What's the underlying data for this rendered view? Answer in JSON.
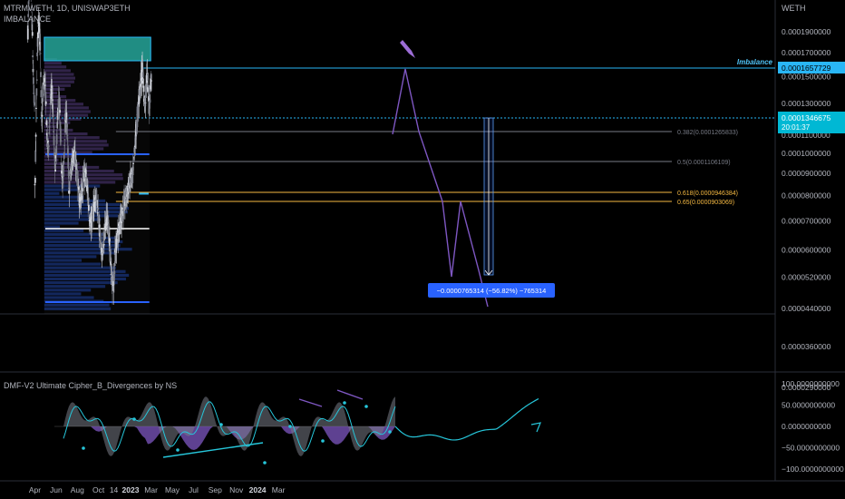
{
  "header": {
    "symbol": "MTRMWETH, 1D, UNISWAP3ETH",
    "indicator": "IMBALANCE",
    "currency": "WETH"
  },
  "lower_pane": {
    "title": "DMF-V2 Ultimate Cipher_B_Divergences by NS"
  },
  "colors": {
    "background": "#000000",
    "accent": "#2962ff",
    "imbalance": "#29b6f6",
    "fib_gold": "#f5b942",
    "fib_grey": "#787b86",
    "purple": "#7e57c2",
    "cyan_wave": "#26c6da"
  },
  "chart_data": [
    {
      "type": "candlestick",
      "title": "MTRMWETH, 1D, UNISWAP3ETH",
      "y_axis": {
        "scale": "log",
        "ticks": [
          "0.0001900000",
          "0.0001700000",
          "0.0001500000",
          "0.0001300000",
          "0.0001100000",
          "0.0001000000",
          "0.0000900000",
          "0.0000800000",
          "0.0000700000",
          "0.0000600000",
          "0.0000520000",
          "0.0000440000",
          "0.0000360000",
          "0.0000290000"
        ],
        "range": [
          2.6e-05,
          0.00021
        ]
      },
      "x_axis": {
        "ticks": [
          "Apr",
          "Jun",
          "Aug",
          "Oct",
          "14",
          "2023",
          "Mar",
          "May",
          "Jul",
          "Sep",
          "Nov",
          "2024",
          "Mar"
        ],
        "range": [
          "2022-03-10",
          "2024-03-31"
        ]
      },
      "price_labels": [
        {
          "label": "Imbalance",
          "value": "0.0001657729"
        },
        {
          "label": "",
          "value": "0.0001346675",
          "countdown": "20:01:37"
        }
      ],
      "fib_levels": [
        {
          "ratio": "0.382",
          "value": "0.0001265833",
          "text": "0.382(0.0001265833)"
        },
        {
          "ratio": "0.5",
          "value": "0.0001106109",
          "text": "0.5(0.0001106109)"
        },
        {
          "ratio": "0.618",
          "value": "0.0000946384",
          "text": "0.618(0.0000946384)"
        },
        {
          "ratio": "0.65",
          "value": "0.0000903069",
          "text": "0.65(0.0000903069)"
        }
      ],
      "measure_label": "−0.0000765314 (−56.82%) −765314",
      "annotations": [
        "Imbalance"
      ]
    },
    {
      "type": "line",
      "title": "DMF-V2 Ultimate Cipher_B_Divergences by NS",
      "y_axis": {
        "ticks": [
          "100.0000000000",
          "50.0000000000",
          "0.0000000000",
          "−50.0000000000",
          "−100.0000000000"
        ],
        "range": [
          -130,
          130
        ]
      }
    }
  ]
}
